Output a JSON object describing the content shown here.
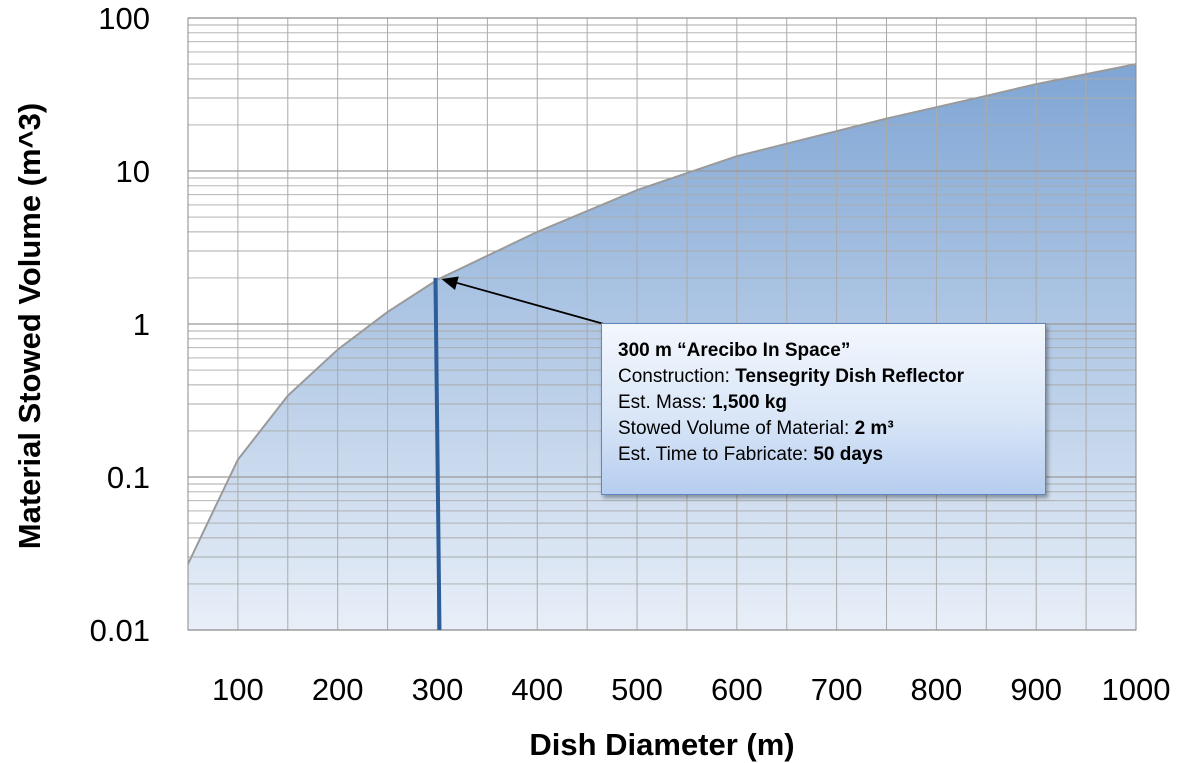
{
  "chart_data": {
    "type": "area",
    "xlabel": "Dish Diameter (m)",
    "ylabel": "Material Stowed Volume (m^3)",
    "xlim": [
      50,
      1000
    ],
    "ylim": [
      0.01,
      100
    ],
    "yscale": "log",
    "grid": true,
    "x_ticks": [
      "100",
      "200",
      "300",
      "400",
      "500",
      "600",
      "700",
      "800",
      "900",
      "1000"
    ],
    "y_ticks": [
      "0.01",
      "0.1",
      "1",
      "10",
      "100"
    ],
    "series": [
      {
        "x": [
          50,
          100,
          150,
          200,
          250,
          300,
          400,
          500,
          600,
          750,
          850,
          900,
          1000
        ],
        "values": [
          0.027,
          0.13,
          0.34,
          0.68,
          1.2,
          1.95,
          4.0,
          7.5,
          12.5,
          22,
          31,
          37,
          50
        ]
      }
    ],
    "marker": {
      "x": 300,
      "y_top": 2
    },
    "colors": {
      "fill_top": "#7fa5d4",
      "fill_bottom": "#e8eff8",
      "curve": "#9a9a9a",
      "marker": "#2e5e99",
      "grid": "#aaaaaa"
    },
    "annotation": {
      "lines": [
        {
          "label": "300 m “Arecibo In Space”",
          "value": ""
        },
        {
          "label": "Construction: ",
          "value": "Tensegrity Dish Reflector"
        },
        {
          "label": "Est. Mass:  ",
          "value": "1,500 kg"
        },
        {
          "label": "Stowed Volume of Material: ",
          "value": "2 m³"
        },
        {
          "label": "Est. Time to Fabricate: ",
          "value": "50 days"
        }
      ]
    }
  }
}
